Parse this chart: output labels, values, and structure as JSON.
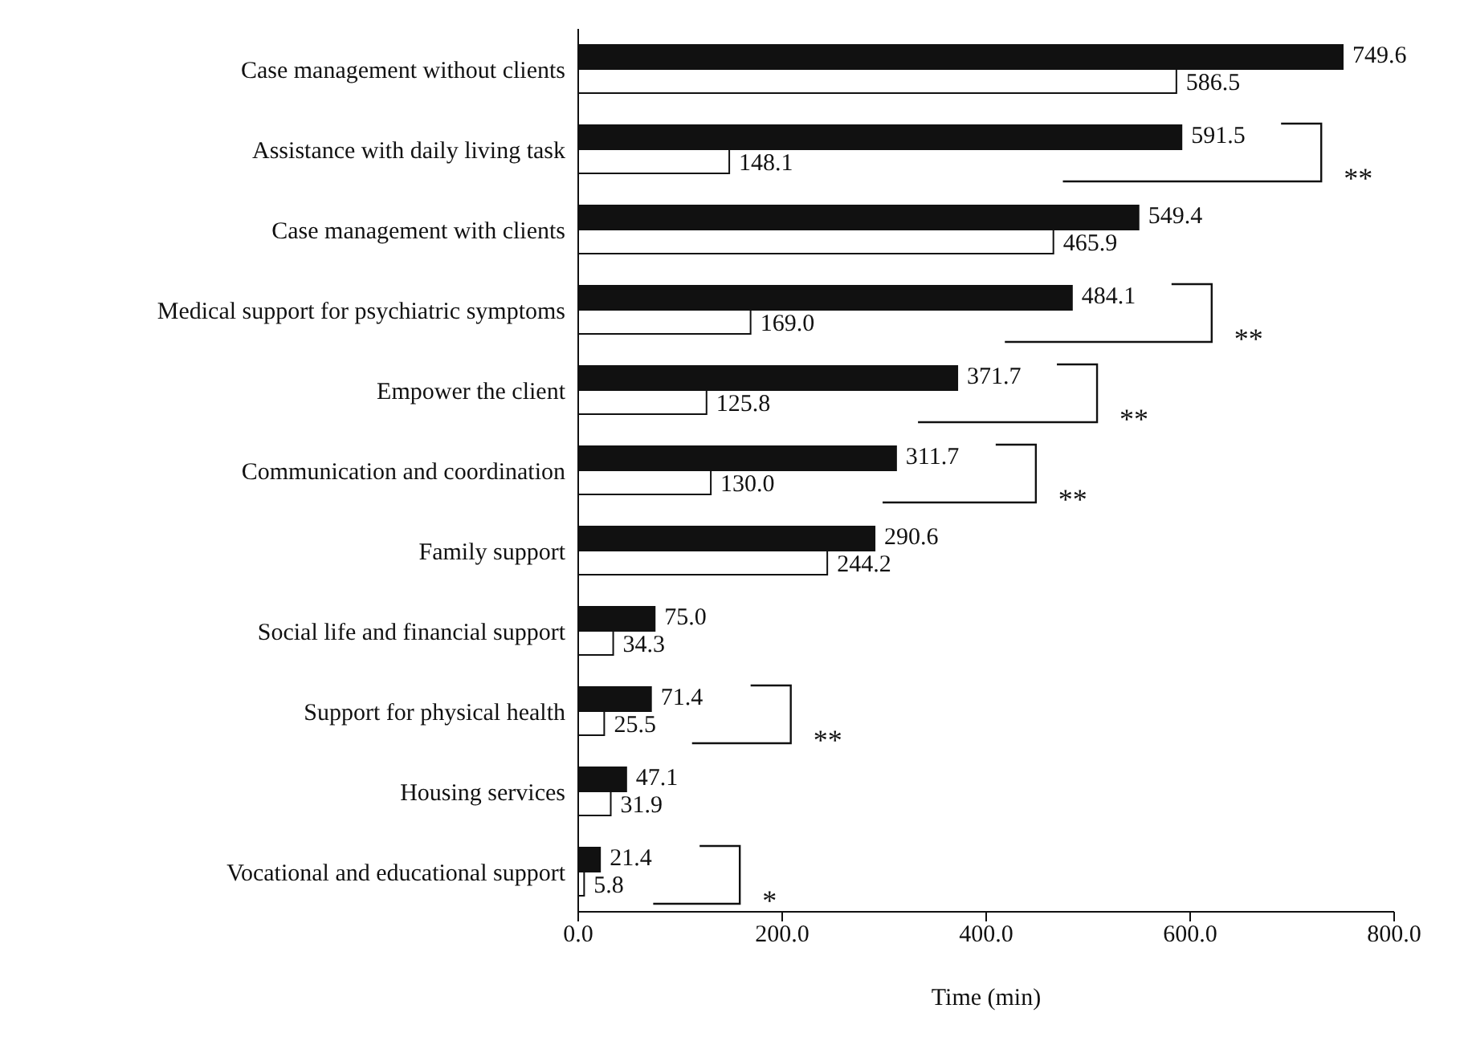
{
  "chart_data": {
    "type": "bar",
    "orientation": "horizontal",
    "xlabel": "Time (min)",
    "categories": [
      "Case management without clients",
      "Assistance with daily living task",
      "Case management with clients",
      "Medical support for psychiatric symptoms",
      "Empower the client",
      "Communication and coordination",
      "Family support",
      "Social life and financial support",
      "Support for physical health",
      "Housing services",
      "Vocational and educational support"
    ],
    "series": [
      {
        "color": "#111111",
        "values": [
          749.6,
          591.5,
          549.4,
          484.1,
          371.7,
          311.7,
          290.6,
          75.0,
          71.4,
          47.1,
          21.4
        ],
        "value_labels": [
          "749.6",
          "591.5",
          "549.4",
          "484.1",
          "371.7",
          "311.7",
          "290.6",
          "75.0",
          "71.4",
          "47.1",
          "21.4"
        ]
      },
      {
        "color": "#ffffff",
        "values": [
          586.5,
          148.1,
          465.9,
          169.0,
          125.8,
          130.0,
          244.2,
          34.3,
          25.5,
          31.9,
          5.8
        ],
        "value_labels": [
          "586.5",
          "148.1",
          "465.9",
          "169.0",
          "125.8",
          "130.0",
          "244.2",
          "34.3",
          "25.5",
          "31.9",
          "5.8"
        ]
      }
    ],
    "xlim": [
      0,
      800
    ],
    "xticks": [
      {
        "value": 0,
        "label": "0.0"
      },
      {
        "value": 200,
        "label": "200.0"
      },
      {
        "value": 400,
        "label": "400.0"
      },
      {
        "value": 600,
        "label": "600.0"
      },
      {
        "value": 800,
        "label": "800.0"
      }
    ],
    "annotations": [
      "**",
      "**",
      "**",
      "**",
      "**",
      "*"
    ],
    "grid": false,
    "legend": false
  }
}
